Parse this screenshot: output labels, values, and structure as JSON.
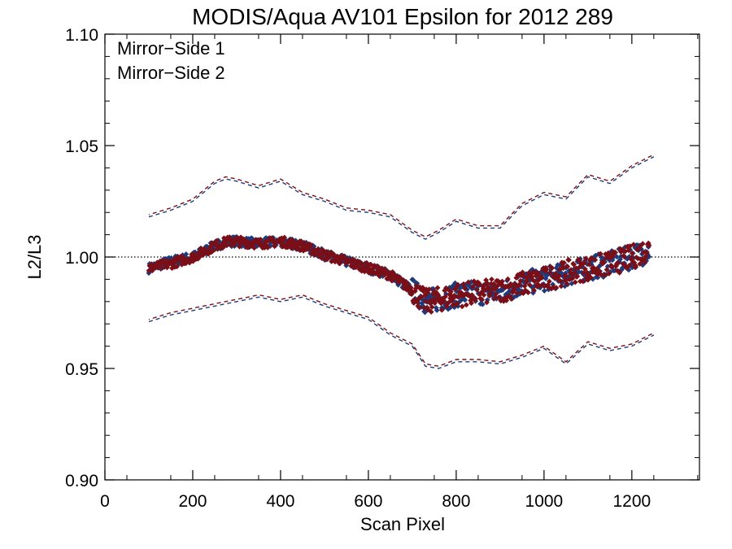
{
  "chart_data": {
    "type": "scatter",
    "title": "MODIS/Aqua AV101 Epsilon for 2012 289",
    "xlabel": "Scan Pixel",
    "ylabel": "L2/L3",
    "xlim": [
      0,
      1354
    ],
    "ylim": [
      0.9,
      1.1
    ],
    "x_ticks": [
      0,
      200,
      400,
      600,
      800,
      1000,
      1200
    ],
    "x_tick_labels": [
      "0",
      "200",
      "400",
      "600",
      "800",
      "1000",
      "1200"
    ],
    "y_ticks": [
      0.9,
      0.95,
      1.0,
      1.05,
      1.1
    ],
    "y_tick_labels": [
      "0.90",
      "0.95",
      "1.00",
      "1.05",
      "1.10"
    ],
    "reference_line": {
      "y": 1.0,
      "style": "dotted"
    },
    "legend_placement": "top-left",
    "series": [
      {
        "name": "Mirror−Side 1",
        "color": "#1f3a7a",
        "mean": {
          "x": [
            100,
            150,
            200,
            250,
            280,
            300,
            350,
            400,
            450,
            500,
            550,
            600,
            650,
            700,
            730,
            760,
            800,
            850,
            900,
            950,
            1000,
            1050,
            1100,
            1150,
            1200,
            1240
          ],
          "y": [
            0.995,
            0.998,
            1.0,
            1.005,
            1.007,
            1.007,
            1.006,
            1.007,
            1.005,
            1.001,
            0.998,
            0.995,
            0.992,
            0.985,
            0.98,
            0.981,
            0.983,
            0.984,
            0.984,
            0.988,
            0.99,
            0.992,
            0.995,
            0.997,
            1.0,
            1.003
          ]
        },
        "upper": {
          "x": [
            100,
            150,
            200,
            250,
            275,
            300,
            350,
            400,
            450,
            500,
            550,
            600,
            650,
            700,
            730,
            760,
            800,
            850,
            900,
            950,
            1000,
            1050,
            1100,
            1150,
            1200,
            1250
          ],
          "y": [
            1.018,
            1.021,
            1.025,
            1.033,
            1.035,
            1.034,
            1.031,
            1.034,
            1.028,
            1.025,
            1.021,
            1.02,
            1.018,
            1.011,
            1.008,
            1.011,
            1.016,
            1.013,
            1.013,
            1.023,
            1.028,
            1.026,
            1.036,
            1.033,
            1.04,
            1.045
          ]
        },
        "lower": {
          "x": [
            100,
            150,
            200,
            250,
            300,
            350,
            400,
            450,
            500,
            550,
            600,
            650,
            700,
            730,
            760,
            800,
            850,
            900,
            950,
            1000,
            1050,
            1100,
            1150,
            1200,
            1250
          ],
          "y": [
            0.971,
            0.974,
            0.976,
            0.978,
            0.98,
            0.982,
            0.98,
            0.982,
            0.978,
            0.975,
            0.972,
            0.965,
            0.96,
            0.951,
            0.95,
            0.953,
            0.953,
            0.952,
            0.955,
            0.959,
            0.952,
            0.961,
            0.958,
            0.96,
            0.965
          ]
        }
      },
      {
        "name": "Mirror−Side 2",
        "color": "#7a0f17",
        "mean": {
          "x": [
            100,
            150,
            200,
            250,
            280,
            300,
            350,
            400,
            450,
            500,
            550,
            600,
            650,
            700,
            730,
            760,
            800,
            850,
            900,
            950,
            1000,
            1050,
            1100,
            1150,
            1200,
            1240
          ],
          "y": [
            0.995,
            0.997,
            1.0,
            1.005,
            1.007,
            1.007,
            1.006,
            1.007,
            1.005,
            1.001,
            0.998,
            0.995,
            0.992,
            0.985,
            0.98,
            0.981,
            0.983,
            0.984,
            0.985,
            0.988,
            0.99,
            0.993,
            0.995,
            0.997,
            1.0,
            1.004
          ]
        },
        "upper": {
          "x": [
            100,
            150,
            200,
            250,
            275,
            300,
            350,
            400,
            450,
            500,
            550,
            600,
            650,
            700,
            730,
            760,
            800,
            850,
            900,
            950,
            1000,
            1050,
            1100,
            1150,
            1200,
            1250
          ],
          "y": [
            1.019,
            1.022,
            1.026,
            1.034,
            1.036,
            1.035,
            1.032,
            1.035,
            1.029,
            1.026,
            1.022,
            1.021,
            1.019,
            1.012,
            1.009,
            1.012,
            1.017,
            1.014,
            1.014,
            1.024,
            1.029,
            1.027,
            1.037,
            1.034,
            1.041,
            1.046
          ]
        },
        "lower": {
          "x": [
            100,
            150,
            200,
            250,
            300,
            350,
            400,
            450,
            500,
            550,
            600,
            650,
            700,
            730,
            760,
            800,
            850,
            900,
            950,
            1000,
            1050,
            1100,
            1150,
            1200,
            1250
          ],
          "y": [
            0.972,
            0.975,
            0.977,
            0.979,
            0.981,
            0.983,
            0.981,
            0.983,
            0.979,
            0.976,
            0.973,
            0.966,
            0.961,
            0.952,
            0.951,
            0.954,
            0.954,
            0.953,
            0.956,
            0.96,
            0.953,
            0.962,
            0.959,
            0.961,
            0.966
          ]
        }
      }
    ]
  }
}
